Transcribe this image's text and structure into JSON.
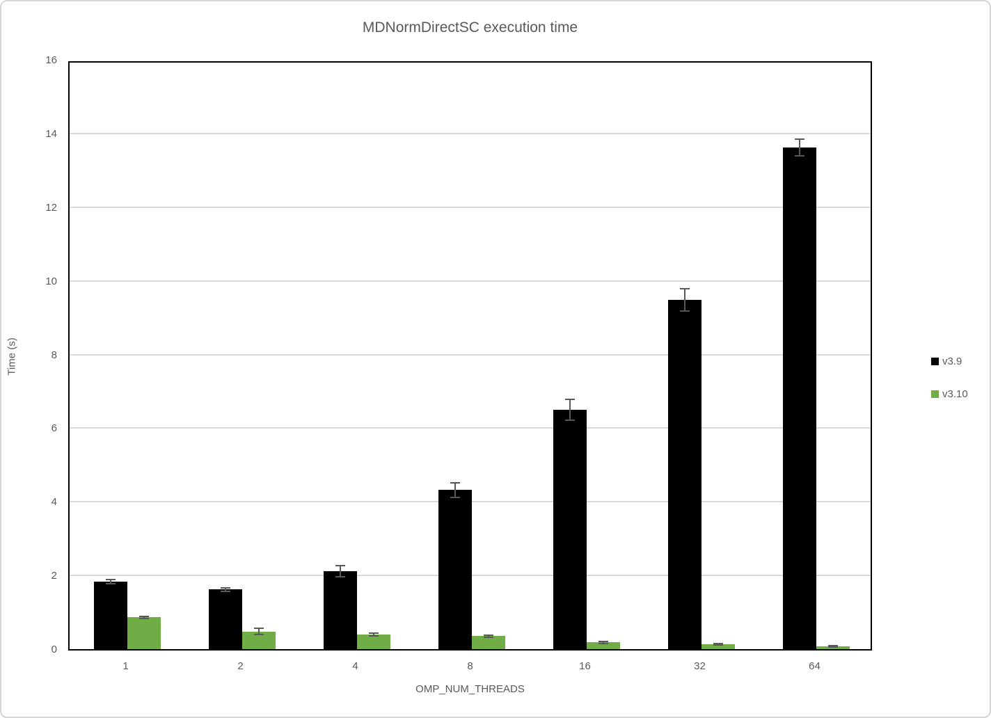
{
  "chart_data": {
    "type": "bar",
    "title": "MDNormDirectSC execution time",
    "xlabel": "OMP_NUM_THREADS",
    "ylabel": "Time (s)",
    "ylim": [
      0,
      16
    ],
    "ytick_step": 2,
    "yticks": [
      "0",
      "2",
      "4",
      "6",
      "8",
      "10",
      "12",
      "14",
      "16"
    ],
    "grid": true,
    "legend_position": "right-outside",
    "categories": [
      "1",
      "2",
      "4",
      "8",
      "16",
      "32",
      "64"
    ],
    "series": [
      {
        "name": "v3.9",
        "color": "#000000",
        "values": [
          1.83,
          1.62,
          2.12,
          4.32,
          6.5,
          9.48,
          13.62
        ],
        "errors": [
          0.05,
          0.05,
          0.15,
          0.2,
          0.28,
          0.3,
          0.22
        ]
      },
      {
        "name": "v3.10",
        "color": "#70AD47",
        "values": [
          0.86,
          0.48,
          0.39,
          0.35,
          0.18,
          0.13,
          0.08
        ],
        "errors": [
          0.02,
          0.09,
          0.04,
          0.03,
          0.03,
          0.02,
          0.02
        ]
      }
    ],
    "error_bar_color": "#595959"
  },
  "colors": {
    "text": "#595959",
    "gridline": "#d9d9d9",
    "plot_border": "#000000",
    "figure_border": "#d6d6d6",
    "background": "#ffffff"
  }
}
